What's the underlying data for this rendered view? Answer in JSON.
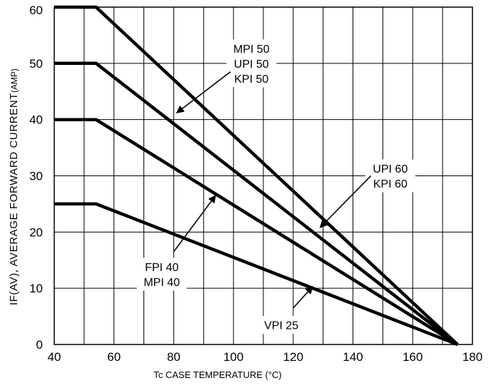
{
  "chart_data": {
    "type": "line",
    "xlabel_main": "Tc CASE TEMPERATURE",
    "xlabel_unit": "(°C)",
    "ylabel_main": "IF(AV), AVERAGE FORWARD CURRENT",
    "ylabel_unit": "(AMP)",
    "xlim": [
      40,
      180
    ],
    "ylim": [
      0,
      60
    ],
    "x_ticks": [
      40,
      60,
      80,
      100,
      120,
      140,
      160,
      180
    ],
    "y_ticks": [
      0,
      10,
      20,
      30,
      40,
      50,
      60
    ],
    "grid": true,
    "grid_x_step": 20,
    "grid_y_step": 10,
    "series": [
      {
        "id": "s60",
        "points": [
          [
            40,
            60
          ],
          [
            54,
            60
          ],
          [
            175,
            0
          ]
        ]
      },
      {
        "id": "s50",
        "points": [
          [
            40,
            50
          ],
          [
            54,
            50
          ],
          [
            175,
            0
          ]
        ]
      },
      {
        "id": "s40",
        "points": [
          [
            40,
            40
          ],
          [
            54,
            40
          ],
          [
            175,
            0
          ]
        ]
      },
      {
        "id": "s25",
        "points": [
          [
            40,
            25
          ],
          [
            54,
            25
          ],
          [
            175,
            0
          ]
        ]
      }
    ],
    "annotations": [
      {
        "id": "ann-mpi50",
        "lines": [
          "MPI 50",
          "UPI 50",
          "KPI 50"
        ],
        "text_at": [
          106,
          50
        ],
        "arrow_from": [
          99,
          48.5
        ],
        "arrow_to": [
          81,
          41.2
        ]
      },
      {
        "id": "ann-upi60",
        "lines": [
          "UPI 60",
          "KPI 60"
        ],
        "text_at": [
          152.5,
          30
        ],
        "arrow_from": [
          146,
          30
        ],
        "arrow_to": [
          129,
          20.8
        ]
      },
      {
        "id": "ann-fpi40",
        "lines": [
          "FPI 40",
          "MPI 40"
        ],
        "text_at": [
          76,
          12.5
        ],
        "arrow_from": [
          80,
          16.5
        ],
        "arrow_to": [
          94,
          26.5
        ]
      },
      {
        "id": "ann-vpi25",
        "lines": [
          "VPI 25"
        ],
        "text_at": [
          116,
          3.5
        ],
        "arrow_from": [
          120,
          6.5
        ],
        "arrow_to": [
          126.5,
          10.3
        ]
      }
    ]
  }
}
